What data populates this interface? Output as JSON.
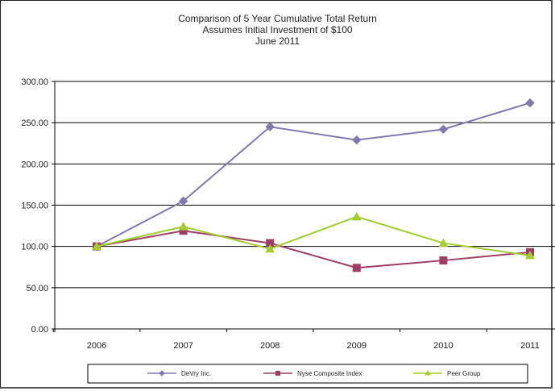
{
  "chart_data": {
    "type": "line",
    "title_lines": [
      "Comparison of 5 Year Cumulative Total Return",
      "Assumes Initial Investment of $100",
      "June 2011"
    ],
    "categories": [
      "2006",
      "2007",
      "2008",
      "2009",
      "2010",
      "2011"
    ],
    "ylim": [
      0,
      300
    ],
    "yticks": [
      "0.00",
      "50.00",
      "100.00",
      "150.00",
      "200.00",
      "250.00",
      "300.00"
    ],
    "grid": true,
    "legend_position": "bottom",
    "series": [
      {
        "name": "DeVry Inc.",
        "values": [
          100,
          155,
          245,
          229,
          242,
          274
        ],
        "color": "#8478B0",
        "marker": "diamond"
      },
      {
        "name": "Nyse Composite Index",
        "values": [
          100,
          119,
          104,
          74,
          83,
          93
        ],
        "color": "#9E3E64",
        "marker": "square"
      },
      {
        "name": "Peer Group",
        "values": [
          100,
          124,
          97,
          136,
          104,
          89
        ],
        "color": "#A3CC2E",
        "marker": "triangle"
      }
    ]
  }
}
